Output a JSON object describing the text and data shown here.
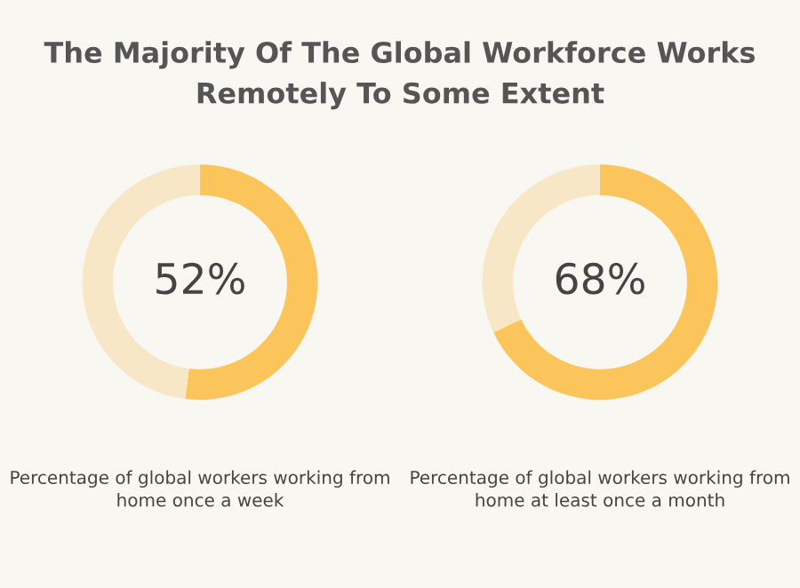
{
  "chart_data": [
    {
      "type": "donut",
      "title": "The Majority Of The Global Workforce Works Remotely To Some Extent",
      "categories": [
        null,
        null
      ],
      "values": [
        52,
        48
      ],
      "colors": [
        "#fbc55c",
        "#f7e7c6"
      ],
      "value_labels": [
        "52%",
        null
      ],
      "annotations": [
        "Percentage of global workers working from home once a week"
      ]
    },
    {
      "type": "donut",
      "categories": [
        null,
        null
      ],
      "values": [
        68,
        32
      ],
      "colors": [
        "#fbc55c",
        "#f7e7c6"
      ],
      "value_labels": [
        "68%",
        null
      ],
      "annotations": [
        "Percentage of global workers working from home at least once a month"
      ]
    }
  ]
}
